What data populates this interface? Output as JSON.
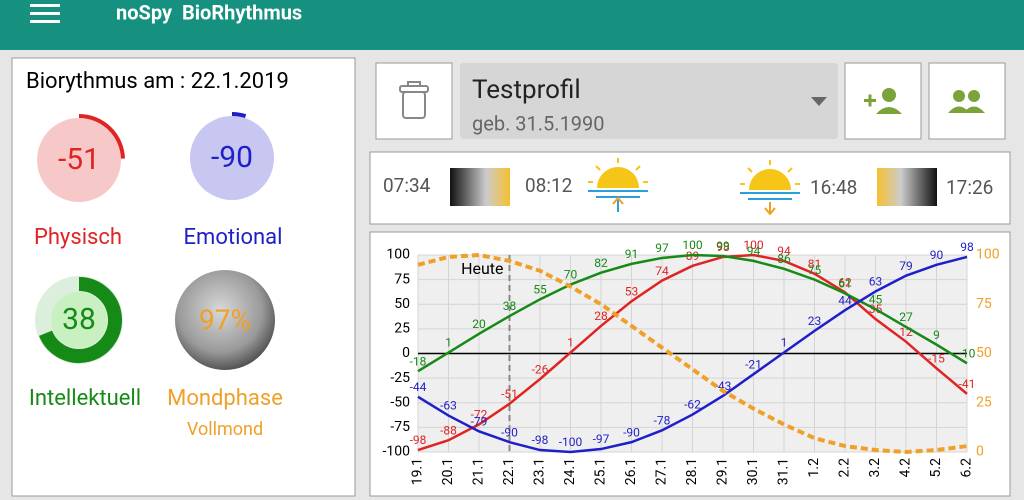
{
  "app_bar": {
    "title": "noSpy  BioRhythmus"
  },
  "summary": {
    "heading": "Biorythmus am :  22.1.2019",
    "gauges": [
      {
        "label": "Physisch",
        "value": -51,
        "color": "#e02424"
      },
      {
        "label": "Emotional",
        "value": -90,
        "color": "#1f1fc8"
      },
      {
        "label": "Intellektuell",
        "value": 38,
        "color": "#168a16"
      }
    ],
    "moon": {
      "label": "Mondphase",
      "value": 97,
      "value_label": "97%",
      "phase": "Vollmond",
      "color": "#f0a028"
    }
  },
  "profile": {
    "name": "Testprofil",
    "birth": "geb. 31.5.1990"
  },
  "sun": {
    "dawn": "07:34",
    "sunrise": "08:12",
    "sunset": "16:48",
    "dusk": "17:26"
  },
  "chart_data": {
    "type": "line",
    "annotation": {
      "text": "Heute",
      "x": "22.1"
    },
    "categories": [
      "19.1",
      "20.1",
      "21.1",
      "22.1",
      "23.1",
      "24.1",
      "25.1",
      "26.1",
      "27.1",
      "28.1",
      "29.1",
      "30.1",
      "31.1",
      "1.2",
      "2.2",
      "3.2",
      "4.2",
      "5.2",
      "6.2"
    ],
    "series": [
      {
        "color": "#e02424",
        "values": [
          -98,
          -88,
          -72,
          -51,
          -26,
          1,
          28,
          53,
          74,
          89,
          98,
          100,
          94,
          81,
          62,
          35,
          12,
          -15,
          -41
        ]
      },
      {
        "color": "#168a16",
        "values": [
          -18,
          1,
          20,
          38,
          55,
          70,
          82,
          91,
          97,
          100,
          99,
          94,
          86,
          75,
          61,
          45,
          27,
          9,
          -10
        ]
      },
      {
        "color": "#1f1fc8",
        "values": [
          -44,
          -63,
          -79,
          -90,
          -98,
          -100,
          -97,
          -90,
          -78,
          -62,
          -43,
          -21,
          1,
          23,
          44,
          63,
          79,
          90,
          98
        ]
      },
      {
        "color": "#f0a028",
        "axis": "y2",
        "dashed": true,
        "values": [
          95,
          99,
          100,
          97,
          92,
          84,
          75,
          64,
          53,
          42,
          31,
          22,
          14,
          7,
          3,
          1,
          0,
          1,
          3
        ]
      }
    ],
    "ylim": [
      -100,
      100
    ],
    "yticks": [
      -100,
      -75,
      -50,
      -25,
      0,
      25,
      50,
      75,
      100
    ],
    "y2lim": [
      0,
      100
    ],
    "y2ticks": [
      0,
      25,
      50,
      75,
      100
    ],
    "grid": true
  }
}
